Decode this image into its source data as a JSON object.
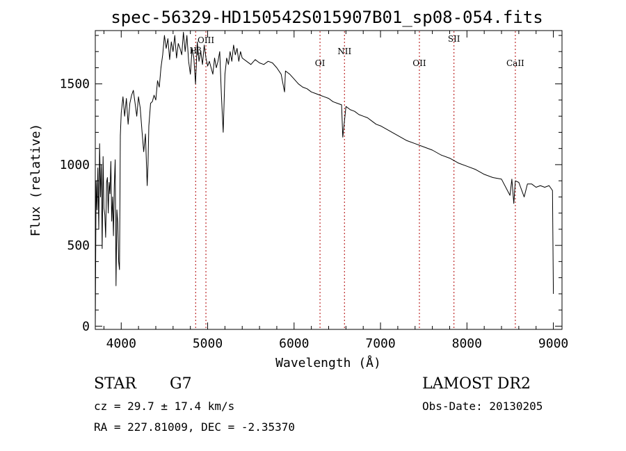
{
  "chart_data": {
    "type": "line",
    "title": "spec-56329-HD150542S015907B01_sp08-054.fits",
    "xlabel": "Wavelength (Å)",
    "ylabel": "Flux (relative)",
    "xlim": [
      3700,
      9100
    ],
    "ylim": [
      -20,
      1830
    ],
    "x_ticks": [
      4000,
      5000,
      6000,
      7000,
      8000,
      9000
    ],
    "y_ticks": [
      0,
      500,
      1000,
      1500
    ],
    "grid": false,
    "series": [
      {
        "x": [
          3700,
          3710,
          3720,
          3730,
          3740,
          3750,
          3760,
          3770,
          3780,
          3790,
          3800,
          3810,
          3820,
          3830,
          3840,
          3850,
          3860,
          3870,
          3880,
          3890,
          3900,
          3910,
          3920,
          3930,
          3940,
          3950,
          3960,
          3970,
          3980,
          3990,
          4000,
          4020,
          4040,
          4060,
          4080,
          4100,
          4120,
          4140,
          4160,
          4180,
          4200,
          4220,
          4240,
          4260,
          4280,
          4300,
          4310,
          4320,
          4340,
          4360,
          4380,
          4400,
          4420,
          4440,
          4460,
          4480,
          4500,
          4520,
          4540,
          4560,
          4580,
          4600,
          4620,
          4640,
          4660,
          4680,
          4700,
          4720,
          4740,
          4760,
          4780,
          4800,
          4820,
          4840,
          4860,
          4880,
          4900,
          4920,
          4940,
          4960,
          4980,
          5000,
          5020,
          5040,
          5060,
          5080,
          5100,
          5120,
          5140,
          5160,
          5180,
          5200,
          5220,
          5240,
          5260,
          5280,
          5300,
          5320,
          5340,
          5360,
          5380,
          5400,
          5450,
          5500,
          5550,
          5600,
          5650,
          5700,
          5750,
          5800,
          5850,
          5890,
          5900,
          5950,
          6000,
          6050,
          6100,
          6150,
          6200,
          6250,
          6300,
          6350,
          6400,
          6450,
          6500,
          6550,
          6563,
          6600,
          6650,
          6700,
          6750,
          6800,
          6850,
          6900,
          6950,
          7000,
          7100,
          7200,
          7300,
          7400,
          7500,
          7600,
          7700,
          7800,
          7900,
          8000,
          8100,
          8200,
          8300,
          8400,
          8498,
          8520,
          8542,
          8560,
          8600,
          8662,
          8700,
          8750,
          8800,
          8850,
          8900,
          8950,
          8990,
          9000
        ],
        "y": [
          0,
          900,
          720,
          980,
          600,
          1130,
          800,
          1000,
          480,
          1050,
          730,
          690,
          550,
          890,
          920,
          700,
          890,
          820,
          1020,
          650,
          800,
          560,
          870,
          1030,
          250,
          720,
          640,
          400,
          350,
          1180,
          1320,
          1420,
          1300,
          1410,
          1250,
          1380,
          1430,
          1460,
          1380,
          1300,
          1420,
          1350,
          1210,
          1080,
          1190,
          870,
          1000,
          1240,
          1380,
          1390,
          1430,
          1400,
          1520,
          1480,
          1600,
          1680,
          1800,
          1720,
          1780,
          1650,
          1760,
          1700,
          1800,
          1660,
          1750,
          1720,
          1680,
          1820,
          1700,
          1800,
          1640,
          1560,
          1720,
          1660,
          1500,
          1760,
          1640,
          1700,
          1620,
          1740,
          1660,
          1610,
          1640,
          1600,
          1560,
          1660,
          1600,
          1640,
          1700,
          1420,
          1200,
          1560,
          1660,
          1620,
          1700,
          1640,
          1740,
          1680,
          1720,
          1640,
          1700,
          1660,
          1640,
          1620,
          1650,
          1630,
          1620,
          1640,
          1630,
          1600,
          1560,
          1450,
          1580,
          1560,
          1530,
          1500,
          1480,
          1470,
          1450,
          1440,
          1430,
          1420,
          1410,
          1390,
          1380,
          1370,
          1170,
          1360,
          1340,
          1330,
          1310,
          1300,
          1290,
          1270,
          1250,
          1240,
          1210,
          1180,
          1150,
          1130,
          1110,
          1090,
          1060,
          1040,
          1010,
          990,
          970,
          940,
          920,
          910,
          810,
          910,
          760,
          900,
          890,
          800,
          880,
          880,
          860,
          870,
          860,
          870,
          840,
          200
        ]
      }
    ],
    "annotations": [
      {
        "label": "Hβ",
        "x": 4861
      },
      {
        "label": "OIII",
        "x": 4980
      },
      {
        "label": "OI",
        "x": 6300
      },
      {
        "label": "NII",
        "x": 6583
      },
      {
        "label": "OII",
        "x": 7450
      },
      {
        "label": "SII",
        "x": 7850
      },
      {
        "label": "CaII",
        "x": 8560
      }
    ]
  },
  "footer": {
    "object_class": "STAR",
    "subclass": "G7",
    "cz": "cz = 29.7 ± 17.4 km/s",
    "coords": "RA = 227.81009, DEC =  -2.35370",
    "survey": "LAMOST DR2",
    "obs_date": "Obs-Date: 20130205"
  }
}
